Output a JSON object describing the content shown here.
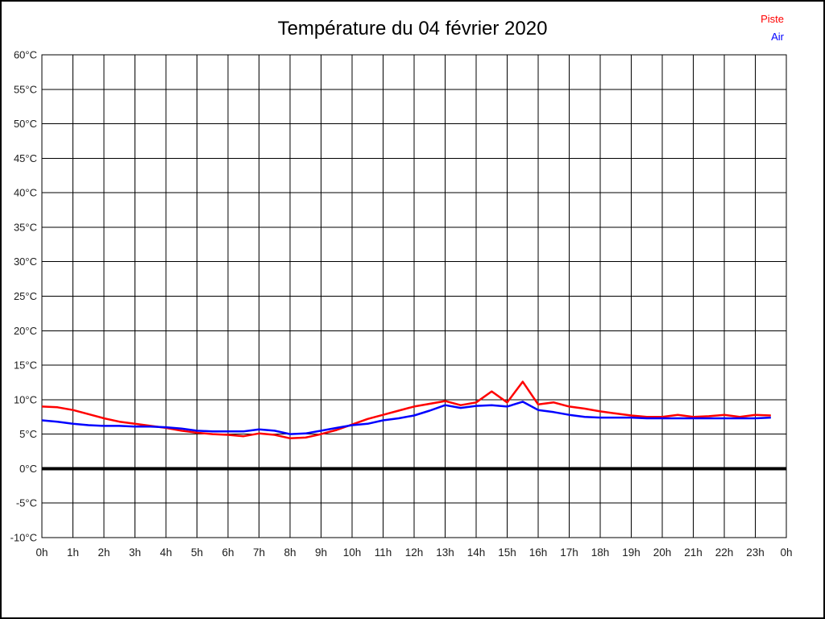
{
  "title": "Température du 04 février 2020",
  "legend": {
    "items": [
      {
        "label": "Piste",
        "color": "#ff0000"
      },
      {
        "label": "Air",
        "color": "#0000ff"
      }
    ]
  },
  "chart_data": {
    "type": "line",
    "title": "Température du 04 février 2020",
    "xlabel": "",
    "ylabel": "",
    "xlim": [
      0,
      24
    ],
    "ylim": [
      -10,
      60
    ],
    "grid": true,
    "zero_line_at": 0,
    "grid_color": "#000000",
    "text_color": "#1c1c1c",
    "legend_position": "top-right",
    "x_tick_values": [
      0,
      1,
      2,
      3,
      4,
      5,
      6,
      7,
      8,
      9,
      10,
      11,
      12,
      13,
      14,
      15,
      16,
      17,
      18,
      19,
      20,
      21,
      22,
      23,
      24
    ],
    "x_tick_labels": [
      "0h",
      "1h",
      "2h",
      "3h",
      "4h",
      "5h",
      "6h",
      "7h",
      "8h",
      "9h",
      "10h",
      "11h",
      "12h",
      "13h",
      "14h",
      "15h",
      "16h",
      "17h",
      "18h",
      "19h",
      "20h",
      "21h",
      "22h",
      "23h",
      "0h"
    ],
    "y_tick_values": [
      60,
      55,
      50,
      45,
      40,
      35,
      30,
      25,
      20,
      15,
      10,
      5,
      0,
      -5,
      -10
    ],
    "y_tick_labels": [
      "60°C",
      "55°C",
      "50°C",
      "45°C",
      "40°C",
      "35°C",
      "30°C",
      "25°C",
      "20°C",
      "15°C",
      "10°C",
      "5°C",
      "0°C",
      "-5°C",
      "-10°C"
    ],
    "series": [
      {
        "name": "Piste",
        "color": "#ff0000",
        "x_start": 0,
        "x_step": 0.5,
        "values": [
          9.0,
          8.9,
          8.5,
          7.9,
          7.3,
          6.8,
          6.5,
          6.2,
          5.9,
          5.5,
          5.2,
          5.0,
          4.9,
          4.7,
          5.1,
          4.9,
          4.4,
          4.5,
          5.0,
          5.6,
          6.4,
          7.2,
          7.8,
          8.4,
          9.0,
          9.4,
          9.8,
          9.2,
          9.6,
          11.2,
          9.6,
          12.6,
          9.3,
          9.6,
          9.0,
          8.7,
          8.3,
          8.0,
          7.7,
          7.5,
          7.5,
          7.8,
          7.5,
          7.6,
          7.8,
          7.5,
          7.8,
          7.7
        ]
      },
      {
        "name": "Air",
        "color": "#0000ff",
        "x_start": 0,
        "x_step": 0.5,
        "values": [
          7.0,
          6.8,
          6.5,
          6.3,
          6.2,
          6.2,
          6.1,
          6.1,
          6.0,
          5.8,
          5.5,
          5.4,
          5.4,
          5.4,
          5.7,
          5.5,
          5.0,
          5.1,
          5.5,
          5.9,
          6.3,
          6.5,
          7.0,
          7.3,
          7.7,
          8.4,
          9.2,
          8.8,
          9.1,
          9.2,
          9.0,
          9.7,
          8.5,
          8.2,
          7.8,
          7.5,
          7.4,
          7.4,
          7.4,
          7.3,
          7.3,
          7.3,
          7.3,
          7.3,
          7.3,
          7.3,
          7.3,
          7.4
        ]
      }
    ]
  }
}
